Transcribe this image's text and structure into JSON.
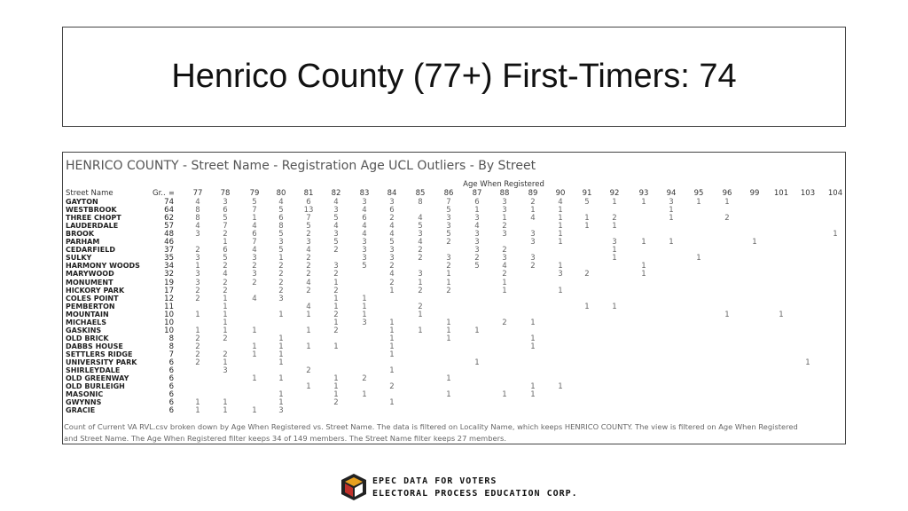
{
  "header": {
    "title": "Henrico County (77+) First-Timers: 74"
  },
  "table": {
    "title": "HENRICO COUNTY  - Street Name -  Registration Age UCL Outliers - By Street",
    "column_group_label": "Age When Registered",
    "columns": [
      "Street Name",
      "Gr..",
      "77",
      "78",
      "79",
      "80",
      "81",
      "82",
      "83",
      "84",
      "85",
      "86",
      "87",
      "88",
      "89",
      "90",
      "91",
      "92",
      "93",
      "94",
      "95",
      "96",
      "99",
      "101",
      "103",
      "104"
    ],
    "rows": [
      [
        "GAYTON",
        74,
        4,
        3,
        5,
        4,
        6,
        4,
        3,
        3,
        8,
        7,
        6,
        3,
        2,
        4,
        5,
        1,
        1,
        3,
        1,
        1,
        null,
        null,
        null,
        null
      ],
      [
        "WESTBROOK",
        64,
        8,
        6,
        7,
        5,
        13,
        3,
        4,
        6,
        null,
        5,
        1,
        3,
        1,
        1,
        null,
        null,
        null,
        1,
        null,
        null,
        null,
        null,
        null,
        null
      ],
      [
        "THREE CHOPT",
        62,
        8,
        5,
        1,
        6,
        7,
        5,
        6,
        2,
        4,
        3,
        3,
        1,
        4,
        1,
        1,
        2,
        null,
        1,
        null,
        2,
        null,
        null,
        null,
        null
      ],
      [
        "LAUDERDALE",
        57,
        4,
        7,
        4,
        8,
        5,
        4,
        4,
        4,
        5,
        3,
        4,
        2,
        null,
        1,
        1,
        1,
        null,
        null,
        null,
        null,
        null,
        null,
        null,
        null
      ],
      [
        "BROOK",
        48,
        3,
        2,
        6,
        5,
        2,
        3,
        4,
        4,
        3,
        5,
        3,
        3,
        3,
        1,
        null,
        null,
        null,
        null,
        null,
        null,
        null,
        null,
        null,
        1
      ],
      [
        "PARHAM",
        46,
        null,
        1,
        7,
        3,
        3,
        5,
        3,
        5,
        4,
        2,
        3,
        null,
        3,
        1,
        null,
        3,
        1,
        1,
        null,
        null,
        1,
        null,
        null,
        null
      ],
      [
        "CEDARFIELD",
        37,
        2,
        6,
        4,
        5,
        4,
        2,
        3,
        3,
        2,
        null,
        3,
        2,
        null,
        null,
        null,
        1,
        null,
        null,
        null,
        null,
        null,
        null,
        null,
        null
      ],
      [
        "SULKY",
        35,
        3,
        5,
        3,
        1,
        2,
        null,
        3,
        3,
        2,
        3,
        2,
        3,
        3,
        null,
        null,
        1,
        null,
        null,
        1,
        null,
        null,
        null,
        null,
        null
      ],
      [
        "HARMONY WOODS",
        34,
        1,
        2,
        2,
        2,
        2,
        3,
        5,
        2,
        null,
        2,
        5,
        4,
        2,
        1,
        null,
        null,
        1,
        null,
        null,
        null,
        null,
        null,
        null,
        null
      ],
      [
        "MARYWOOD",
        32,
        3,
        4,
        3,
        2,
        2,
        2,
        null,
        4,
        3,
        1,
        null,
        2,
        null,
        3,
        2,
        null,
        1,
        null,
        null,
        null,
        null,
        null,
        null,
        null
      ],
      [
        "MONUMENT",
        19,
        3,
        2,
        2,
        2,
        4,
        1,
        null,
        2,
        1,
        1,
        null,
        1,
        null,
        null,
        null,
        null,
        null,
        null,
        null,
        null,
        null,
        null,
        null,
        null
      ],
      [
        "HICKORY PARK",
        17,
        2,
        2,
        null,
        2,
        2,
        2,
        null,
        1,
        2,
        2,
        null,
        1,
        null,
        1,
        null,
        null,
        null,
        null,
        null,
        null,
        null,
        null,
        null,
        null
      ],
      [
        "COLES POINT",
        12,
        2,
        1,
        4,
        3,
        null,
        1,
        1,
        null,
        null,
        null,
        null,
        null,
        null,
        null,
        null,
        null,
        null,
        null,
        null,
        null,
        null,
        null,
        null,
        null
      ],
      [
        "PEMBERTON",
        11,
        null,
        1,
        null,
        null,
        4,
        1,
        1,
        null,
        2,
        null,
        null,
        null,
        null,
        null,
        1,
        1,
        null,
        null,
        null,
        null,
        null,
        null,
        null,
        null
      ],
      [
        "MOUNTAIN",
        10,
        1,
        1,
        null,
        1,
        1,
        2,
        1,
        null,
        1,
        null,
        null,
        null,
        null,
        null,
        null,
        null,
        null,
        null,
        null,
        1,
        null,
        1,
        null,
        null
      ],
      [
        "MICHAELS",
        10,
        null,
        1,
        null,
        null,
        null,
        1,
        3,
        1,
        null,
        1,
        null,
        2,
        1,
        null,
        null,
        null,
        null,
        null,
        null,
        null,
        null,
        null,
        null,
        null
      ],
      [
        "GASKINS",
        10,
        1,
        1,
        1,
        null,
        1,
        2,
        null,
        1,
        1,
        1,
        1,
        null,
        null,
        null,
        null,
        null,
        null,
        null,
        null,
        null,
        null,
        null,
        null,
        null
      ],
      [
        "OLD BRICK",
        8,
        2,
        2,
        null,
        1,
        null,
        null,
        null,
        1,
        null,
        1,
        null,
        null,
        1,
        null,
        null,
        null,
        null,
        null,
        null,
        null,
        null,
        null,
        null,
        null
      ],
      [
        "DABBS HOUSE",
        8,
        2,
        null,
        1,
        1,
        1,
        1,
        null,
        1,
        null,
        null,
        null,
        null,
        1,
        null,
        null,
        null,
        null,
        null,
        null,
        null,
        null,
        null,
        null,
        null
      ],
      [
        "SETTLERS RIDGE",
        7,
        2,
        2,
        1,
        1,
        null,
        null,
        null,
        1,
        null,
        null,
        null,
        null,
        null,
        null,
        null,
        null,
        null,
        null,
        null,
        null,
        null,
        null,
        null,
        null
      ],
      [
        "UNIVERSITY PARK",
        6,
        2,
        1,
        null,
        1,
        null,
        null,
        null,
        null,
        null,
        null,
        1,
        null,
        null,
        null,
        null,
        null,
        null,
        null,
        null,
        null,
        null,
        null,
        1,
        null
      ],
      [
        "SHIRLEYDALE",
        6,
        null,
        3,
        null,
        null,
        2,
        null,
        null,
        1,
        null,
        null,
        null,
        null,
        null,
        null,
        null,
        null,
        null,
        null,
        null,
        null,
        null,
        null,
        null,
        null
      ],
      [
        "OLD GREENWAY",
        6,
        null,
        null,
        1,
        1,
        null,
        1,
        2,
        null,
        null,
        1,
        null,
        null,
        null,
        null,
        null,
        null,
        null,
        null,
        null,
        null,
        null,
        null,
        null,
        null
      ],
      [
        "OLD BURLEIGH",
        6,
        null,
        null,
        null,
        null,
        1,
        1,
        null,
        2,
        null,
        null,
        null,
        null,
        1,
        1,
        null,
        null,
        null,
        null,
        null,
        null,
        null,
        null,
        null,
        null
      ],
      [
        "MASONIC",
        6,
        null,
        null,
        null,
        1,
        null,
        1,
        1,
        null,
        null,
        1,
        null,
        1,
        1,
        null,
        null,
        null,
        null,
        null,
        null,
        null,
        null,
        null,
        null,
        null
      ],
      [
        "GWYNNS",
        6,
        1,
        1,
        null,
        1,
        null,
        2,
        null,
        1,
        null,
        null,
        null,
        null,
        null,
        null,
        null,
        null,
        null,
        null,
        null,
        null,
        null,
        null,
        null,
        null
      ],
      [
        "GRACIE",
        6,
        1,
        1,
        1,
        3,
        null,
        null,
        null,
        null,
        null,
        null,
        null,
        null,
        null,
        null,
        null,
        null,
        null,
        null,
        null,
        null,
        null,
        null,
        null,
        null
      ]
    ],
    "note": [
      "Count of Current VA RVL.csv broken down by Age When Registered vs. Street Name. The data is filtered on Locality Name, which keeps HENRICO COUNTY. The view is filtered on Age When Registered",
      "and Street Name. The Age When Registered filter keeps 34 of 149 members. The Street Name filter keeps 27 members."
    ]
  },
  "logo": {
    "line1": "EPEC DATA FOR VOTERS",
    "line2": "ELECTORAL PROCESS EDUCATION CORP."
  }
}
